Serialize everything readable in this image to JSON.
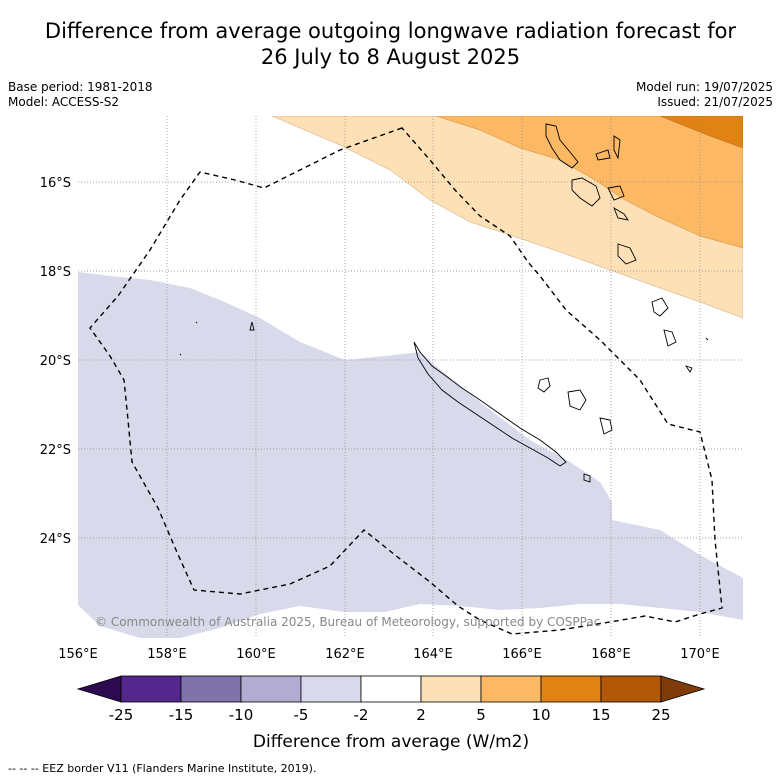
{
  "title": {
    "line1": "Difference from average outgoing longwave radiation forecast for",
    "line2": "26 July to 8 August 2025"
  },
  "meta": {
    "base_period": "Base period: 1981-2018",
    "model": "Model: ACCESS-S2",
    "model_run": "Model run: 19/07/2025",
    "issued": "Issued: 21/07/2025"
  },
  "map": {
    "lat_labels": [
      "16°S",
      "18°S",
      "20°S",
      "22°S",
      "24°S"
    ],
    "lon_labels": [
      "156°E",
      "158°E",
      "160°E",
      "162°E",
      "164°E",
      "166°E",
      "168°E",
      "170°E"
    ],
    "copyright": "© Commonwealth of Australia 2025, Bureau of Meteorology, supported by COSPPac"
  },
  "legend": {
    "ticks": [
      "-25",
      "-15",
      "-10",
      "-5",
      "-2",
      "2",
      "5",
      "10",
      "15",
      "25"
    ],
    "label": "Difference from average (W/m2)",
    "colors": [
      "#2d0a4f",
      "#54278f",
      "#8073ac",
      "#b2abd2",
      "#d8daeb",
      "#ffffff",
      "#fee0b6",
      "#fdb863",
      "#e08214",
      "#b35806",
      "#7f3b08"
    ]
  },
  "footer": {
    "eez_note": "--  --  -- EEZ border V11 (Flanders Marine Institute, 2019)."
  }
}
